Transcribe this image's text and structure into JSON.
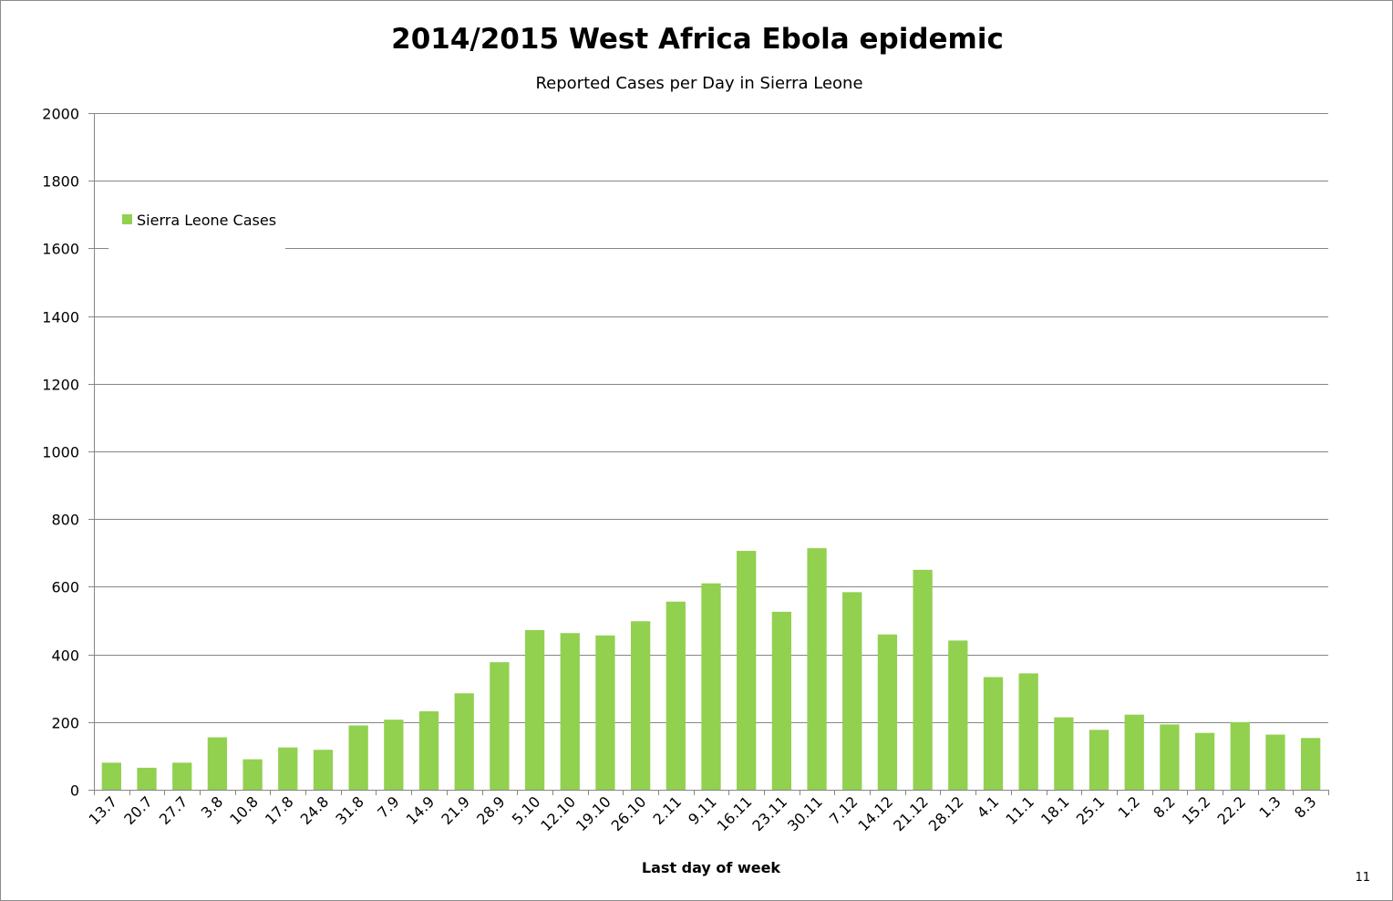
{
  "chart_data": {
    "type": "bar",
    "title": "2014/2015 West Africa Ebola epidemic",
    "subtitle": "Reported Cases per Day in Sierra Leone",
    "xlabel": "Last day of week",
    "ylabel": "",
    "ylim": [
      0,
      2000
    ],
    "yticks": [
      0,
      200,
      400,
      600,
      800,
      1000,
      1200,
      1400,
      1600,
      1800,
      2000
    ],
    "grid": true,
    "legend_position": "top-left",
    "categories": [
      "13.7",
      "20.7",
      "27.7",
      "3.8",
      "10.8",
      "17.8",
      "24.8",
      "31.8",
      "7.9",
      "14.9",
      "21.9",
      "28.9",
      "5.10",
      "12.10",
      "19.10",
      "26.10",
      "2.11",
      "9.11",
      "16.11",
      "23.11",
      "30.11",
      "7.12",
      "14.12",
      "21.12",
      "28.12",
      "4.1",
      "11.1",
      "18.1",
      "25.1",
      "1.2",
      "8.2",
      "15.2",
      "22.2",
      "1.3",
      "8.3"
    ],
    "series": [
      {
        "name": "Sierra Leone Cases",
        "color": "#92d050",
        "values": [
          80,
          65,
          80,
          155,
          90,
          125,
          118,
          190,
          207,
          232,
          285,
          377,
          472,
          463,
          456,
          498,
          556,
          610,
          706,
          526,
          714,
          584,
          459,
          650,
          441,
          333,
          344,
          214,
          177,
          222,
          193,
          168,
          200,
          163,
          153
        ]
      }
    ]
  },
  "page_number": "11",
  "colors": {
    "bar": "#92d050",
    "grid": "#868686",
    "axis": "#868686"
  }
}
